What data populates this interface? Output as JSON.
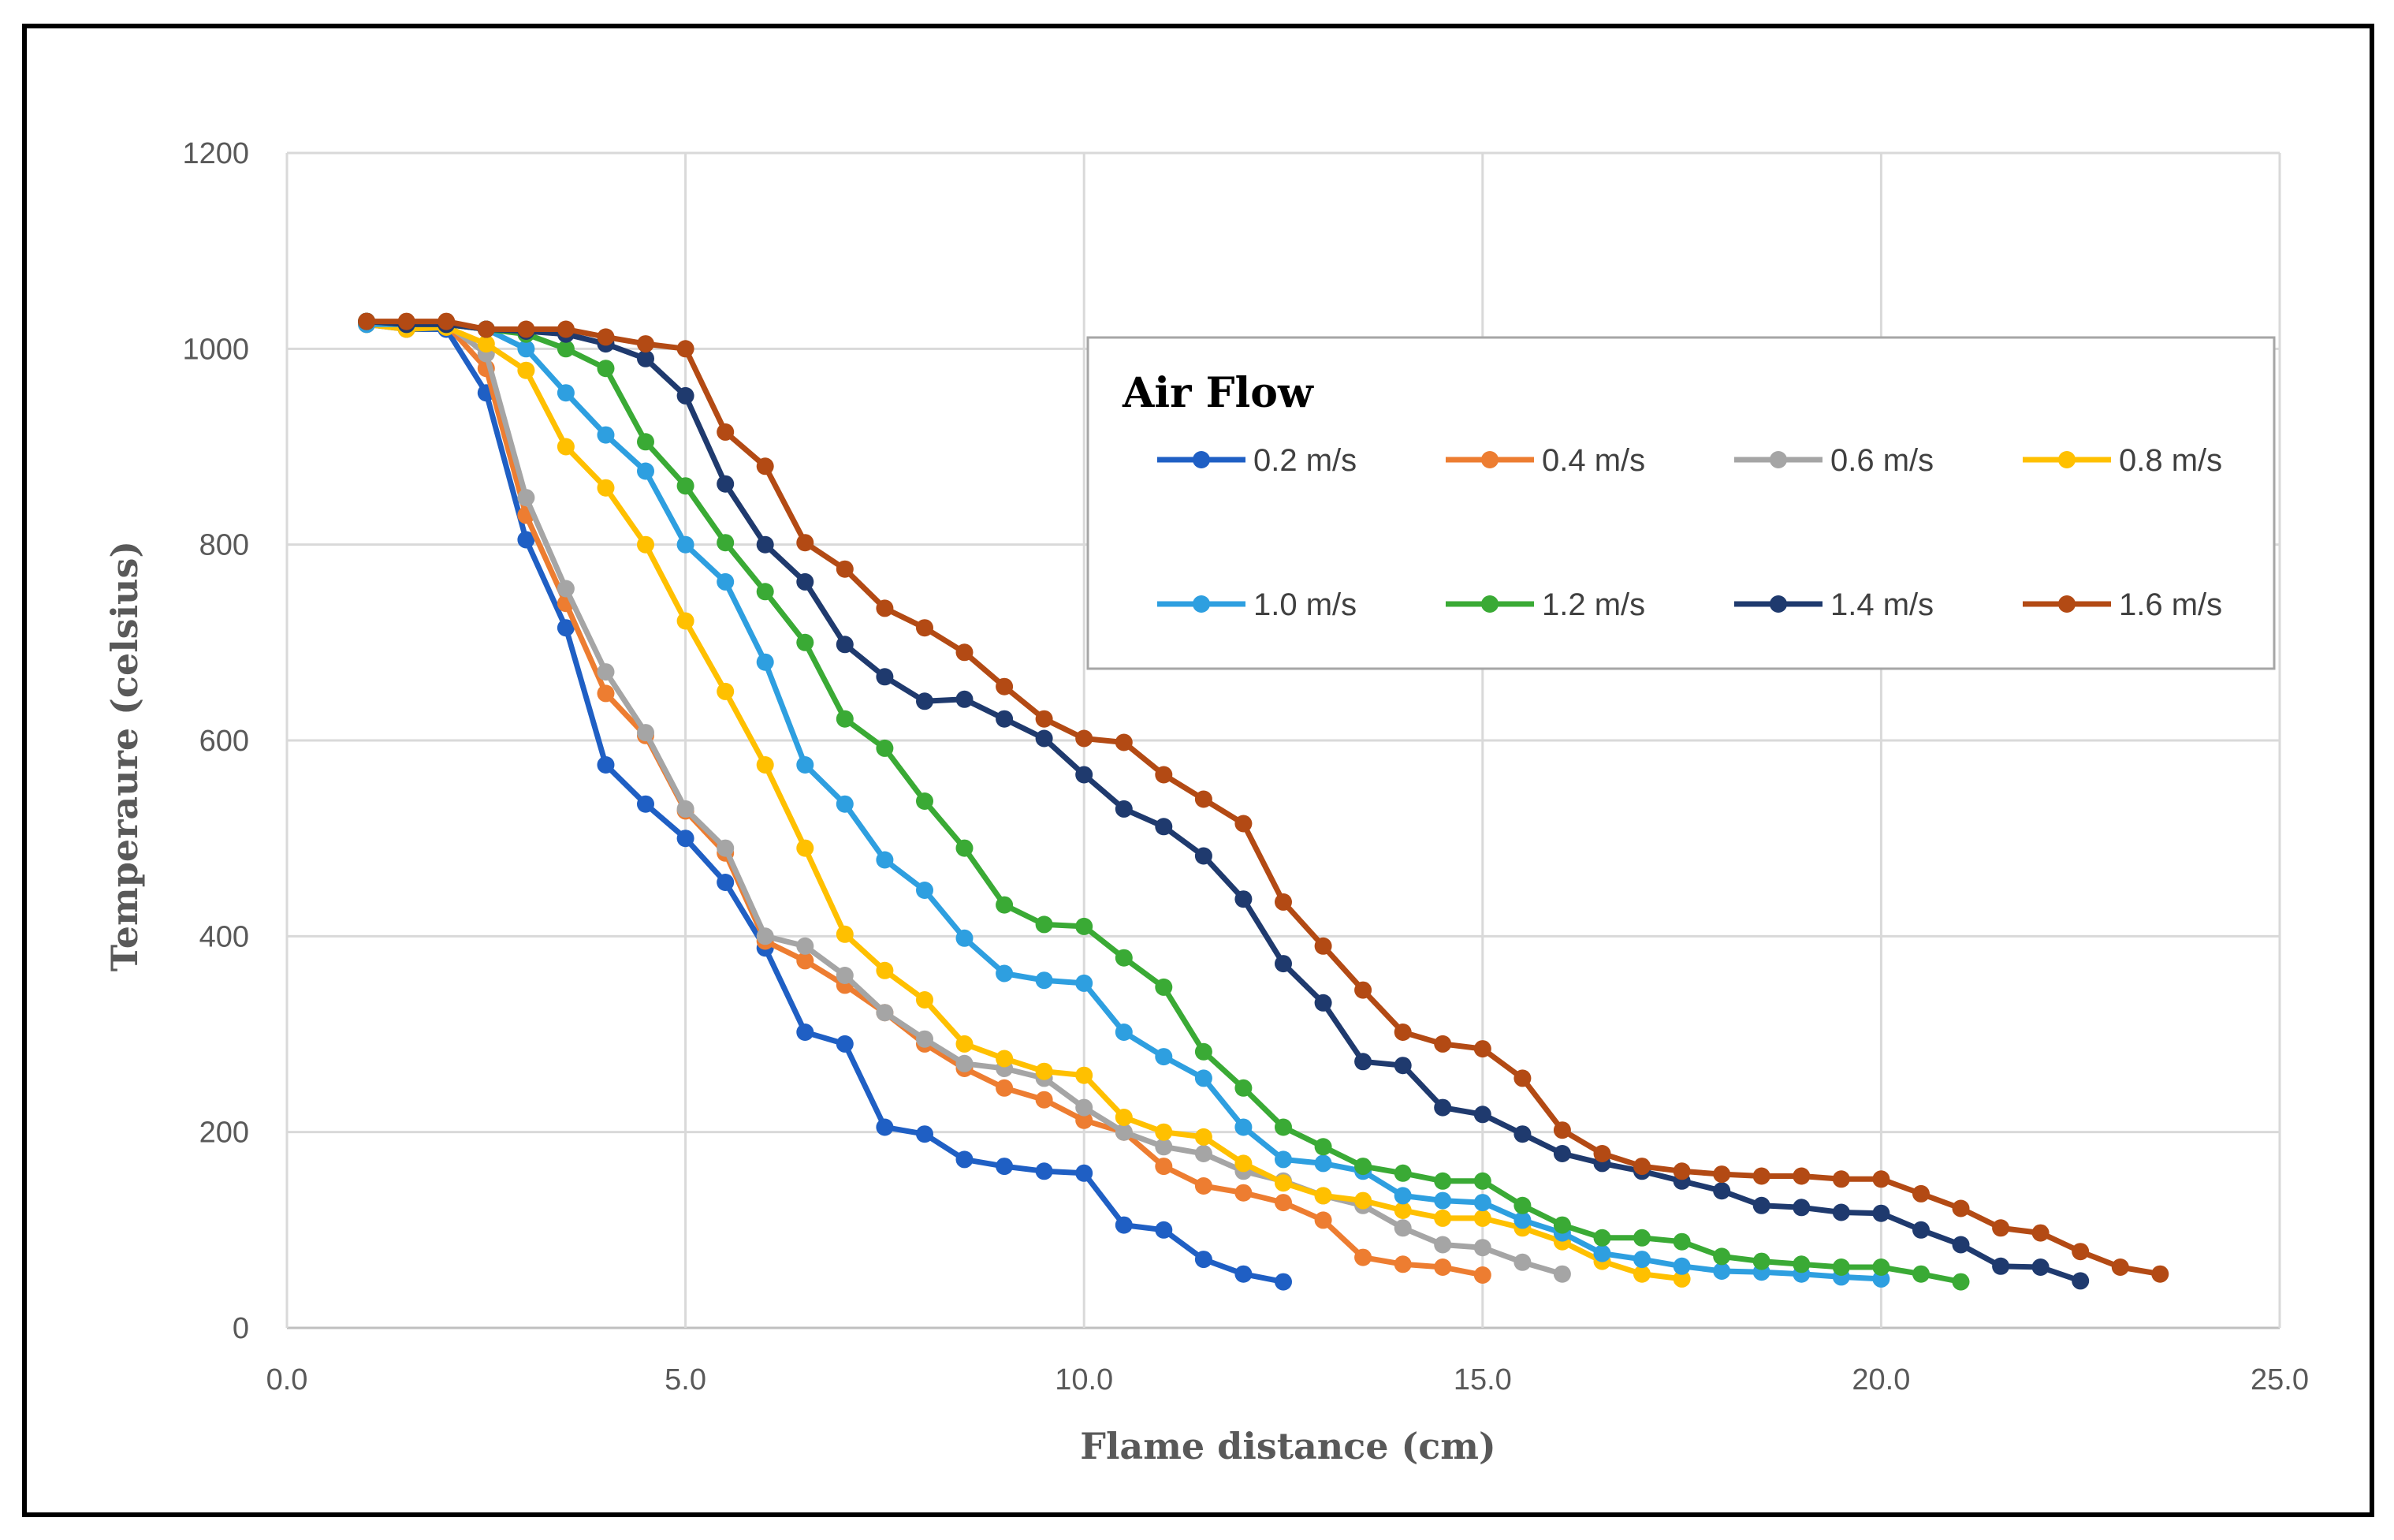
{
  "chart_data": {
    "type": "line",
    "title": "",
    "xlabel": "Flame distance (cm)",
    "ylabel": "Temperaure (celsius)",
    "xlim": [
      0,
      25
    ],
    "ylim": [
      0,
      1200
    ],
    "xticks": [
      "0.0",
      "5.0",
      "10.0",
      "15.0",
      "20.0",
      "25.0"
    ],
    "yticks": [
      "0",
      "200",
      "400",
      "600",
      "800",
      "1000",
      "1200"
    ],
    "grid": true,
    "legend": {
      "title": "Air Flow",
      "placement": "top-right"
    },
    "series": [
      {
        "name": "0.2 m/s",
        "color": "#1F5FC4",
        "points": [
          [
            1.0,
            1025
          ],
          [
            1.5,
            1020
          ],
          [
            2.0,
            1020
          ],
          [
            2.5,
            955
          ],
          [
            3.0,
            805
          ],
          [
            3.5,
            715
          ],
          [
            4.0,
            575
          ],
          [
            4.5,
            535
          ],
          [
            5.0,
            500
          ],
          [
            5.5,
            455
          ],
          [
            6.0,
            388
          ],
          [
            6.5,
            302
          ],
          [
            7.0,
            290
          ],
          [
            7.5,
            205
          ],
          [
            8.0,
            198
          ],
          [
            8.5,
            172
          ],
          [
            9.0,
            165
          ],
          [
            9.5,
            160
          ],
          [
            10.0,
            158
          ],
          [
            10.5,
            105
          ],
          [
            11.0,
            100
          ],
          [
            11.5,
            70
          ],
          [
            12.0,
            55
          ],
          [
            12.5,
            47
          ]
        ]
      },
      {
        "name": "0.4 m/s",
        "color": "#ED7D31",
        "points": [
          [
            1.0,
            1028
          ],
          [
            1.5,
            1025
          ],
          [
            2.0,
            1025
          ],
          [
            2.5,
            980
          ],
          [
            3.0,
            830
          ],
          [
            3.5,
            740
          ],
          [
            4.0,
            648
          ],
          [
            4.5,
            605
          ],
          [
            5.0,
            528
          ],
          [
            5.5,
            485
          ],
          [
            6.0,
            395
          ],
          [
            6.5,
            375
          ],
          [
            7.0,
            350
          ],
          [
            7.5,
            322
          ],
          [
            8.0,
            290
          ],
          [
            8.5,
            265
          ],
          [
            9.0,
            245
          ],
          [
            9.5,
            233
          ],
          [
            10.0,
            212
          ],
          [
            10.5,
            200
          ],
          [
            11.0,
            165
          ],
          [
            11.5,
            145
          ],
          [
            12.0,
            138
          ],
          [
            12.5,
            128
          ],
          [
            13.0,
            110
          ],
          [
            13.5,
            72
          ],
          [
            14.0,
            65
          ],
          [
            14.5,
            62
          ],
          [
            15.0,
            54
          ]
        ]
      },
      {
        "name": "0.6 m/s",
        "color": "#A5A5A5",
        "points": [
          [
            1.0,
            1028
          ],
          [
            1.5,
            1025
          ],
          [
            2.0,
            1025
          ],
          [
            2.5,
            995
          ],
          [
            3.0,
            848
          ],
          [
            3.5,
            755
          ],
          [
            4.0,
            670
          ],
          [
            4.5,
            608
          ],
          [
            5.0,
            530
          ],
          [
            5.5,
            490
          ],
          [
            6.0,
            400
          ],
          [
            6.5,
            390
          ],
          [
            7.0,
            360
          ],
          [
            7.5,
            322
          ],
          [
            8.0,
            295
          ],
          [
            8.5,
            270
          ],
          [
            9.0,
            265
          ],
          [
            9.5,
            255
          ],
          [
            10.0,
            225
          ],
          [
            10.5,
            200
          ],
          [
            11.0,
            185
          ],
          [
            11.5,
            178
          ],
          [
            12.0,
            160
          ],
          [
            12.5,
            150
          ],
          [
            13.0,
            135
          ],
          [
            13.5,
            125
          ],
          [
            14.0,
            102
          ],
          [
            14.5,
            85
          ],
          [
            15.0,
            82
          ],
          [
            15.5,
            67
          ],
          [
            16.0,
            55
          ]
        ]
      },
      {
        "name": "0.8 m/s",
        "color": "#FFC000",
        "points": [
          [
            1.0,
            1025
          ],
          [
            1.5,
            1020
          ],
          [
            2.0,
            1022
          ],
          [
            2.5,
            1005
          ],
          [
            3.0,
            978
          ],
          [
            3.5,
            900
          ],
          [
            4.0,
            858
          ],
          [
            4.5,
            800
          ],
          [
            5.0,
            722
          ],
          [
            5.5,
            650
          ],
          [
            6.0,
            575
          ],
          [
            6.5,
            490
          ],
          [
            7.0,
            402
          ],
          [
            7.5,
            365
          ],
          [
            8.0,
            335
          ],
          [
            8.5,
            290
          ],
          [
            9.0,
            275
          ],
          [
            9.5,
            262
          ],
          [
            10.0,
            258
          ],
          [
            10.5,
            215
          ],
          [
            11.0,
            200
          ],
          [
            11.5,
            195
          ],
          [
            12.0,
            168
          ],
          [
            12.5,
            148
          ],
          [
            13.0,
            135
          ],
          [
            13.5,
            130
          ],
          [
            14.0,
            120
          ],
          [
            14.5,
            112
          ],
          [
            15.0,
            112
          ],
          [
            15.5,
            102
          ],
          [
            16.0,
            88
          ],
          [
            16.5,
            68
          ],
          [
            17.0,
            55
          ],
          [
            17.5,
            50
          ]
        ]
      },
      {
        "name": "1.0 m/s",
        "color": "#2E9FE0",
        "points": [
          [
            1.0,
            1025
          ],
          [
            1.5,
            1025
          ],
          [
            2.0,
            1025
          ],
          [
            2.5,
            1020
          ],
          [
            3.0,
            1000
          ],
          [
            3.5,
            955
          ],
          [
            4.0,
            912
          ],
          [
            4.5,
            875
          ],
          [
            5.0,
            800
          ],
          [
            5.5,
            762
          ],
          [
            6.0,
            680
          ],
          [
            6.5,
            575
          ],
          [
            7.0,
            535
          ],
          [
            7.5,
            478
          ],
          [
            8.0,
            447
          ],
          [
            8.5,
            398
          ],
          [
            9.0,
            362
          ],
          [
            9.5,
            355
          ],
          [
            10.0,
            352
          ],
          [
            10.5,
            302
          ],
          [
            11.0,
            277
          ],
          [
            11.5,
            255
          ],
          [
            12.0,
            205
          ],
          [
            12.5,
            172
          ],
          [
            13.0,
            168
          ],
          [
            13.5,
            160
          ],
          [
            14.0,
            135
          ],
          [
            14.5,
            130
          ],
          [
            15.0,
            128
          ],
          [
            15.5,
            110
          ],
          [
            16.0,
            97
          ],
          [
            16.5,
            76
          ],
          [
            17.0,
            70
          ],
          [
            17.5,
            63
          ],
          [
            18.0,
            58
          ],
          [
            18.5,
            57
          ],
          [
            19.0,
            55
          ],
          [
            19.5,
            52
          ],
          [
            20.0,
            50
          ]
        ]
      },
      {
        "name": "1.2 m/s",
        "color": "#3AAA35",
        "points": [
          [
            1.0,
            1028
          ],
          [
            1.5,
            1025
          ],
          [
            2.0,
            1025
          ],
          [
            2.5,
            1020
          ],
          [
            3.0,
            1015
          ],
          [
            3.5,
            1000
          ],
          [
            4.0,
            980
          ],
          [
            4.5,
            905
          ],
          [
            5.0,
            860
          ],
          [
            5.5,
            802
          ],
          [
            6.0,
            752
          ],
          [
            6.5,
            700
          ],
          [
            7.0,
            622
          ],
          [
            7.5,
            592
          ],
          [
            8.0,
            538
          ],
          [
            8.5,
            490
          ],
          [
            9.0,
            432
          ],
          [
            9.5,
            412
          ],
          [
            10.0,
            410
          ],
          [
            10.5,
            378
          ],
          [
            11.0,
            348
          ],
          [
            11.5,
            282
          ],
          [
            12.0,
            245
          ],
          [
            12.5,
            205
          ],
          [
            13.0,
            185
          ],
          [
            13.5,
            165
          ],
          [
            14.0,
            158
          ],
          [
            14.5,
            150
          ],
          [
            15.0,
            150
          ],
          [
            15.5,
            125
          ],
          [
            16.0,
            105
          ],
          [
            16.5,
            92
          ],
          [
            17.0,
            92
          ],
          [
            17.5,
            88
          ],
          [
            18.0,
            73
          ],
          [
            18.5,
            68
          ],
          [
            19.0,
            65
          ],
          [
            19.5,
            62
          ],
          [
            20.0,
            62
          ],
          [
            20.5,
            55
          ],
          [
            21.0,
            47
          ]
        ]
      },
      {
        "name": "1.4 m/s",
        "color": "#1F3A6E",
        "points": [
          [
            1.0,
            1028
          ],
          [
            1.5,
            1025
          ],
          [
            2.0,
            1025
          ],
          [
            2.5,
            1020
          ],
          [
            3.0,
            1018
          ],
          [
            3.5,
            1015
          ],
          [
            4.0,
            1005
          ],
          [
            4.5,
            990
          ],
          [
            5.0,
            952
          ],
          [
            5.5,
            862
          ],
          [
            6.0,
            800
          ],
          [
            6.5,
            762
          ],
          [
            7.0,
            698
          ],
          [
            7.5,
            665
          ],
          [
            8.0,
            640
          ],
          [
            8.5,
            642
          ],
          [
            9.0,
            622
          ],
          [
            9.5,
            602
          ],
          [
            10.0,
            565
          ],
          [
            10.5,
            530
          ],
          [
            11.0,
            512
          ],
          [
            11.5,
            482
          ],
          [
            12.0,
            438
          ],
          [
            12.5,
            372
          ],
          [
            13.0,
            332
          ],
          [
            13.5,
            272
          ],
          [
            14.0,
            268
          ],
          [
            14.5,
            225
          ],
          [
            15.0,
            218
          ],
          [
            15.5,
            198
          ],
          [
            16.0,
            178
          ],
          [
            16.5,
            168
          ],
          [
            17.0,
            160
          ],
          [
            17.5,
            150
          ],
          [
            18.0,
            140
          ],
          [
            18.5,
            125
          ],
          [
            19.0,
            123
          ],
          [
            19.5,
            118
          ],
          [
            20.0,
            117
          ],
          [
            20.5,
            100
          ],
          [
            21.0,
            85
          ],
          [
            21.5,
            63
          ],
          [
            22.0,
            62
          ],
          [
            22.5,
            48
          ]
        ]
      },
      {
        "name": "1.6 m/s",
        "color": "#B34A14",
        "points": [
          [
            1.0,
            1028
          ],
          [
            1.5,
            1028
          ],
          [
            2.0,
            1028
          ],
          [
            2.5,
            1020
          ],
          [
            3.0,
            1020
          ],
          [
            3.5,
            1020
          ],
          [
            4.0,
            1012
          ],
          [
            4.5,
            1005
          ],
          [
            5.0,
            1000
          ],
          [
            5.5,
            915
          ],
          [
            6.0,
            880
          ],
          [
            6.5,
            802
          ],
          [
            7.0,
            775
          ],
          [
            7.5,
            735
          ],
          [
            8.0,
            715
          ],
          [
            8.5,
            690
          ],
          [
            9.0,
            655
          ],
          [
            9.5,
            622
          ],
          [
            10.0,
            602
          ],
          [
            10.5,
            598
          ],
          [
            11.0,
            565
          ],
          [
            11.5,
            540
          ],
          [
            12.0,
            515
          ],
          [
            12.5,
            435
          ],
          [
            13.0,
            390
          ],
          [
            13.5,
            345
          ],
          [
            14.0,
            302
          ],
          [
            14.5,
            290
          ],
          [
            15.0,
            285
          ],
          [
            15.5,
            255
          ],
          [
            16.0,
            202
          ],
          [
            16.5,
            178
          ],
          [
            17.0,
            165
          ],
          [
            17.5,
            160
          ],
          [
            18.0,
            157
          ],
          [
            18.5,
            155
          ],
          [
            19.0,
            155
          ],
          [
            19.5,
            152
          ],
          [
            20.0,
            152
          ],
          [
            20.5,
            137
          ],
          [
            21.0,
            122
          ],
          [
            21.5,
            102
          ],
          [
            22.0,
            97
          ],
          [
            22.5,
            78
          ],
          [
            23.0,
            62
          ],
          [
            23.5,
            55
          ]
        ]
      }
    ]
  }
}
